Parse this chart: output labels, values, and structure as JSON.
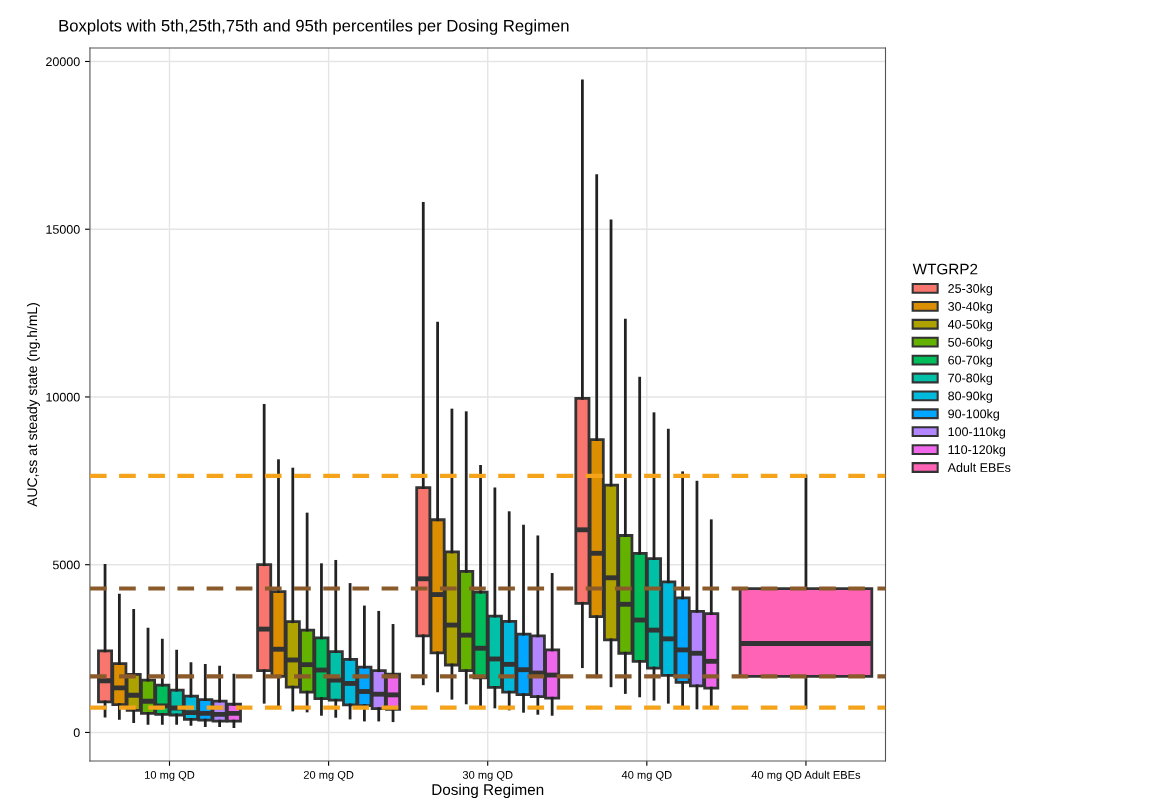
{
  "chart_data": {
    "type": "box",
    "title": "Boxplots with 5th,25th,75th and 95th percentiles per Dosing Regimen",
    "xlabel": "Dosing Regimen",
    "ylabel": "AUC,ss at steady state (ng.h/mL)",
    "legend_title": "WTGRP2",
    "categories": [
      "10 mg QD",
      "20 mg QD",
      "30 mg QD",
      "40 mg QD",
      "40 mg QD Adult EBEs"
    ],
    "ylim": [
      -850,
      20400
    ],
    "yticks": [
      0,
      5000,
      10000,
      15000,
      20000
    ],
    "grid": true,
    "legend": "right",
    "series": [
      {
        "name": "25-30kg",
        "color": "#f8766d",
        "boxes": [
          {
            "low": 490,
            "q1": 910,
            "median": 1540,
            "q3": 2430,
            "high": 4980
          },
          {
            "low": 900,
            "q1": 1840,
            "median": 3080,
            "q3": 5000,
            "high": 9750
          },
          {
            "low": 1450,
            "q1": 2880,
            "median": 4580,
            "q3": 7300,
            "high": 15770
          },
          {
            "low": 1960,
            "q1": 3850,
            "median": 6040,
            "q3": 9960,
            "high": 19420
          },
          null
        ]
      },
      {
        "name": "30-40kg",
        "color": "#db8e00",
        "boxes": [
          {
            "low": 420,
            "q1": 830,
            "median": 1330,
            "q3": 2050,
            "high": 4090
          },
          {
            "low": 800,
            "q1": 1670,
            "median": 2480,
            "q3": 4200,
            "high": 8100
          },
          {
            "low": 1240,
            "q1": 2370,
            "median": 4110,
            "q3": 6340,
            "high": 12200
          },
          {
            "low": 1660,
            "q1": 3450,
            "median": 5340,
            "q3": 8730,
            "high": 16600
          },
          null
        ]
      },
      {
        "name": "40-50kg",
        "color": "#aea200",
        "boxes": [
          {
            "low": 320,
            "q1": 660,
            "median": 1110,
            "q3": 1730,
            "high": 3640
          },
          {
            "low": 670,
            "q1": 1350,
            "median": 2160,
            "q3": 3300,
            "high": 7850
          },
          {
            "low": 1020,
            "q1": 2010,
            "median": 3200,
            "q3": 5380,
            "high": 9610
          },
          {
            "low": 1390,
            "q1": 2760,
            "median": 4610,
            "q3": 7370,
            "high": 15250
          },
          null
        ]
      },
      {
        "name": "50-60kg",
        "color": "#64b200",
        "boxes": [
          {
            "low": 270,
            "q1": 570,
            "median": 930,
            "q3": 1560,
            "high": 3080
          },
          {
            "low": 640,
            "q1": 1200,
            "median": 2020,
            "q3": 3050,
            "high": 6510
          },
          {
            "low": 880,
            "q1": 1840,
            "median": 2900,
            "q3": 4800,
            "high": 9530
          },
          {
            "low": 1190,
            "q1": 2360,
            "median": 3820,
            "q3": 5870,
            "high": 12290
          },
          null
        ]
      },
      {
        "name": "60-70kg",
        "color": "#00bd5c",
        "boxes": [
          {
            "low": 270,
            "q1": 540,
            "median": 790,
            "q3": 1410,
            "high": 2750
          },
          {
            "low": 540,
            "q1": 1010,
            "median": 1860,
            "q3": 2820,
            "high": 5000
          },
          {
            "low": 810,
            "q1": 1630,
            "median": 2510,
            "q3": 4180,
            "high": 7930
          },
          {
            "low": 1090,
            "q1": 2120,
            "median": 3350,
            "q3": 5340,
            "high": 10560
          },
          null
        ]
      },
      {
        "name": "70-80kg",
        "color": "#00c1a7",
        "boxes": [
          {
            "low": 270,
            "q1": 520,
            "median": 730,
            "q3": 1260,
            "high": 2420
          },
          {
            "low": 480,
            "q1": 960,
            "median": 1560,
            "q3": 2410,
            "high": 5100
          },
          {
            "low": 760,
            "q1": 1340,
            "median": 2190,
            "q3": 3470,
            "high": 7260
          },
          {
            "low": 990,
            "q1": 1920,
            "median": 3050,
            "q3": 5180,
            "high": 9500
          },
          null
        ]
      },
      {
        "name": "80-90kg",
        "color": "#00bade",
        "boxes": [
          {
            "low": 240,
            "q1": 390,
            "median": 590,
            "q3": 1080,
            "high": 2050
          },
          {
            "low": 430,
            "q1": 820,
            "median": 1460,
            "q3": 2180,
            "high": 4410
          },
          {
            "low": 700,
            "q1": 1200,
            "median": 2030,
            "q3": 3310,
            "high": 6550
          },
          {
            "low": 900,
            "q1": 1700,
            "median": 2790,
            "q3": 4490,
            "high": 9010
          },
          null
        ]
      },
      {
        "name": "90-100kg",
        "color": "#00a6ff",
        "boxes": [
          {
            "low": 200,
            "q1": 370,
            "median": 570,
            "q3": 980,
            "high": 2000
          },
          {
            "low": 370,
            "q1": 800,
            "median": 1220,
            "q3": 1950,
            "high": 3740
          },
          {
            "low": 630,
            "q1": 1130,
            "median": 1870,
            "q3": 2930,
            "high": 6150
          },
          {
            "low": 820,
            "q1": 1490,
            "median": 2460,
            "q3": 4010,
            "high": 7740
          },
          null
        ]
      },
      {
        "name": "100-110kg",
        "color": "#b385ff",
        "boxes": [
          {
            "low": 200,
            "q1": 340,
            "median": 540,
            "q3": 930,
            "high": 1950
          },
          {
            "low": 370,
            "q1": 710,
            "median": 1140,
            "q3": 1840,
            "high": 3580
          },
          {
            "low": 570,
            "q1": 1070,
            "median": 1770,
            "q3": 2880,
            "high": 5830
          },
          {
            "low": 730,
            "q1": 1390,
            "median": 2360,
            "q3": 3610,
            "high": 7460
          },
          null
        ]
      },
      {
        "name": "110-120kg",
        "color": "#ef67eb",
        "boxes": [
          {
            "low": 170,
            "q1": 340,
            "median": 570,
            "q3": 840,
            "high": 1710
          },
          {
            "low": 350,
            "q1": 690,
            "median": 1120,
            "q3": 1740,
            "high": 3190
          },
          {
            "low": 540,
            "q1": 1020,
            "median": 1710,
            "q3": 2460,
            "high": 4710
          },
          {
            "low": 820,
            "q1": 1320,
            "median": 2120,
            "q3": 3540,
            "high": 6310
          },
          null
        ]
      },
      {
        "name": "Adult EBEs",
        "color": "#ff63b6",
        "boxes": [
          null,
          null,
          null,
          null,
          {
            "low": 740,
            "q1": 1670,
            "median": 2650,
            "q3": 4290,
            "high": 7650
          }
        ]
      }
    ],
    "ref_lines": [
      {
        "axis": "y",
        "value": 7650,
        "color": "#f5a31a",
        "line_style": "dashed"
      },
      {
        "axis": "y",
        "value": 4290,
        "color": "#8b5a2b",
        "line_style": "dashed"
      },
      {
        "axis": "y",
        "value": 1670,
        "color": "#8b5a2b",
        "line_style": "dashed"
      },
      {
        "axis": "y",
        "value": 740,
        "color": "#f5a31a",
        "line_style": "dashed"
      }
    ]
  }
}
